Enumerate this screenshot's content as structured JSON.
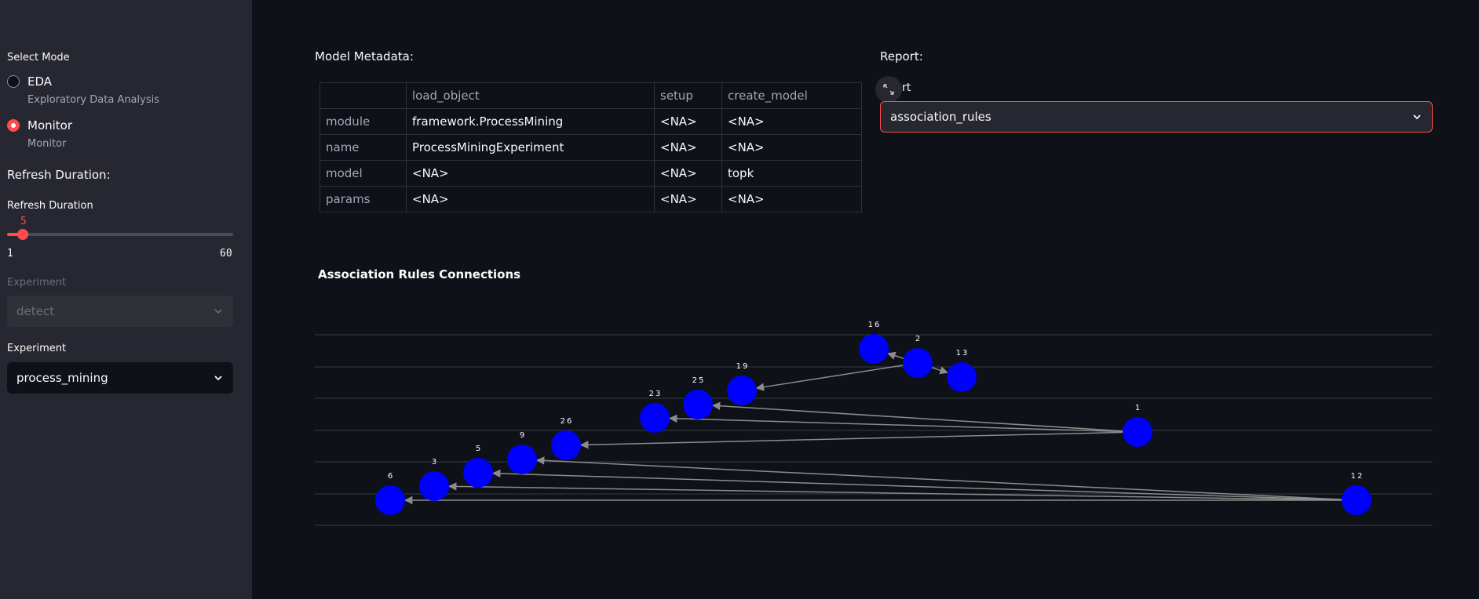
{
  "sidebar": {
    "mode_label": "Select Mode",
    "modes": [
      {
        "label": "EDA",
        "caption": "Exploratory Data Analysis",
        "selected": false
      },
      {
        "label": "Monitor",
        "caption": "Monitor",
        "selected": true
      }
    ],
    "refresh_heading": "Refresh Duration:",
    "refresh_label": "Refresh Duration",
    "refresh_value": "5",
    "refresh_min": "1",
    "refresh_max": "60",
    "experiment_disabled_label": "Experiment",
    "experiment_disabled_value": "detect",
    "experiment_label": "Experiment",
    "experiment_value": "process_mining"
  },
  "main": {
    "metadata_label": "Model Metadata:",
    "table": {
      "columns": [
        "",
        "load_object",
        "setup",
        "create_model"
      ],
      "rows": [
        [
          "module",
          "framework.ProcessMining",
          "<NA>",
          "<NA>"
        ],
        [
          "name",
          "ProcessMiningExperiment",
          "<NA>",
          "<NA>"
        ],
        [
          "model",
          "<NA>",
          "<NA>",
          "topk"
        ],
        [
          "params",
          "<NA>",
          "<NA>",
          "<NA>"
        ]
      ]
    },
    "report_label": "Report:",
    "report_sublabel": "rt",
    "report_value": "association_rules",
    "chart_title": "Association Rules Connections"
  },
  "colors": {
    "accent": "#ff4b4b",
    "node": "#0000ff",
    "edge": "#8c8c8c"
  },
  "chart_data": {
    "type": "network",
    "title": "Association Rules Connections",
    "nodes": [
      "16",
      "2",
      "13",
      "19",
      "25",
      "23",
      "1",
      "26",
      "9",
      "5",
      "3",
      "6",
      "12"
    ],
    "edges": [
      {
        "from": "2",
        "to": "16"
      },
      {
        "from": "2",
        "to": "13"
      },
      {
        "from": "2",
        "to": "19"
      },
      {
        "from": "1",
        "to": "25"
      },
      {
        "from": "1",
        "to": "23"
      },
      {
        "from": "1",
        "to": "26"
      },
      {
        "from": "12",
        "to": "9"
      },
      {
        "from": "12",
        "to": "5"
      },
      {
        "from": "12",
        "to": "3"
      },
      {
        "from": "12",
        "to": "6"
      }
    ]
  }
}
